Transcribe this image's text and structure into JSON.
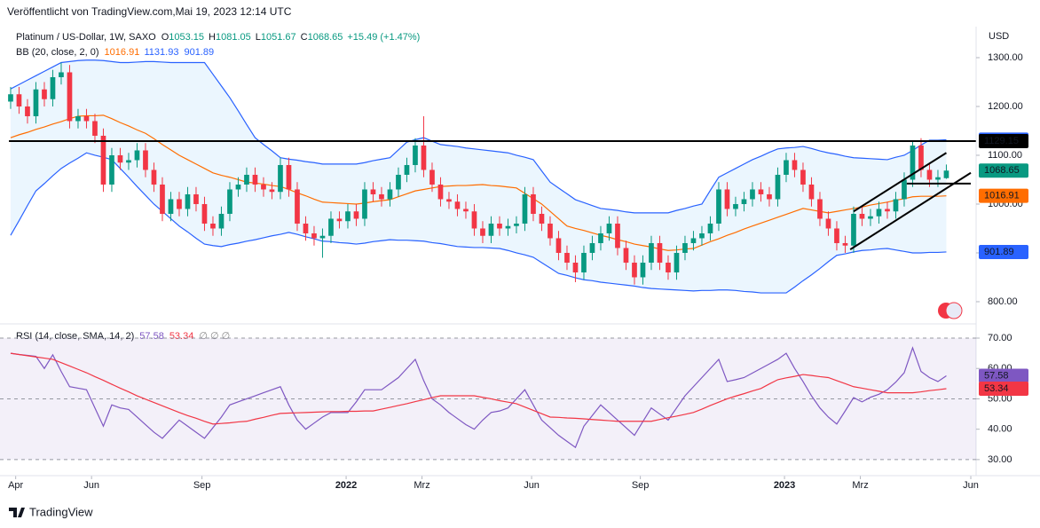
{
  "header": {
    "published": "Veröffentlicht von TradingView.com,Mai 19, 2023 12:14 UTC"
  },
  "chart_data": {
    "type": "candlestick",
    "title": "Platinum / US-Dollar, 1W, SAXO",
    "currency": "USD",
    "ohlc_labels": [
      "O",
      "H",
      "L",
      "C"
    ],
    "change": "+15.49 (+1.47%)",
    "up_color": "#089981",
    "down_color": "#f23645",
    "open": [
      1210,
      1225,
      1200,
      1180,
      1235,
      1215,
      1260,
      1270,
      1170,
      1180,
      1170,
      1140,
      1040,
      1100,
      1085,
      1090,
      1110,
      1070,
      1040,
      980,
      1010,
      990,
      1020,
      1000,
      960,
      950,
      980,
      1030,
      1040,
      1060,
      1040,
      1030,
      1025,
      1080,
      1030,
      960,
      940,
      930,
      935,
      970,
      965,
      985,
      970,
      1030,
      1020,
      1010,
      1030,
      1060,
      1080,
      1120,
      1070,
      1040,
      1010,
      1005,
      990,
      985,
      950,
      935,
      960,
      950,
      955,
      960,
      1020,
      980,
      960,
      930,
      900,
      880,
      860,
      900,
      920,
      940,
      960,
      910,
      880,
      850,
      880,
      920,
      880,
      860,
      900,
      920,
      930,
      940,
      960,
      1030,
      990,
      1000,
      1010,
      1030,
      1020,
      1010,
      1060,
      1090,
      1070,
      1040,
      1010,
      970,
      950,
      920,
      915,
      980,
      970,
      975,
      990,
      985,
      1010,
      1050,
      1120,
      1070,
      1050,
      1053.15
    ],
    "high": [
      1240,
      1240,
      1215,
      1250,
      1250,
      1275,
      1290,
      1285,
      1195,
      1195,
      1185,
      1155,
      1115,
      1115,
      1105,
      1125,
      1125,
      1085,
      1055,
      1025,
      1025,
      1035,
      1035,
      1015,
      975,
      995,
      1045,
      1055,
      1075,
      1075,
      1055,
      1045,
      1095,
      1095,
      1045,
      975,
      955,
      950,
      985,
      985,
      1000,
      1000,
      1045,
      1045,
      1035,
      1045,
      1075,
      1095,
      1135,
      1180,
      1085,
      1055,
      1025,
      1020,
      1005,
      1000,
      965,
      975,
      975,
      970,
      975,
      1035,
      1035,
      995,
      975,
      945,
      915,
      895,
      915,
      935,
      955,
      975,
      975,
      925,
      895,
      895,
      935,
      935,
      895,
      915,
      935,
      945,
      955,
      975,
      1045,
      1045,
      1015,
      1025,
      1045,
      1045,
      1035,
      1075,
      1105,
      1105,
      1085,
      1055,
      1025,
      985,
      965,
      935,
      995,
      995,
      990,
      1005,
      1005,
      1025,
      1065,
      1130,
      1135,
      1085,
      1070,
      1081.05
    ],
    "low": [
      1195,
      1185,
      1165,
      1165,
      1200,
      1200,
      1245,
      1155,
      1155,
      1155,
      1125,
      1025,
      1025,
      1070,
      1070,
      1075,
      1055,
      1025,
      965,
      965,
      975,
      975,
      985,
      945,
      935,
      935,
      965,
      1015,
      1025,
      1025,
      1015,
      1010,
      1010,
      1015,
      945,
      925,
      915,
      890,
      920,
      950,
      950,
      955,
      955,
      1005,
      995,
      995,
      1015,
      1045,
      1065,
      1055,
      1025,
      995,
      990,
      975,
      970,
      935,
      920,
      920,
      935,
      935,
      940,
      945,
      965,
      945,
      915,
      885,
      865,
      840,
      845,
      885,
      905,
      925,
      895,
      865,
      835,
      835,
      865,
      865,
      845,
      845,
      885,
      905,
      915,
      925,
      945,
      975,
      975,
      985,
      995,
      1005,
      995,
      995,
      1045,
      1055,
      1025,
      995,
      955,
      935,
      905,
      900,
      900,
      955,
      955,
      960,
      970,
      970,
      995,
      1035,
      1055,
      1035,
      1035,
      1051.67
    ],
    "close": [
      1225,
      1200,
      1180,
      1235,
      1215,
      1260,
      1270,
      1170,
      1180,
      1170,
      1140,
      1040,
      1100,
      1085,
      1090,
      1110,
      1070,
      1040,
      980,
      1010,
      990,
      1020,
      1000,
      960,
      950,
      980,
      1030,
      1040,
      1060,
      1040,
      1030,
      1025,
      1080,
      1030,
      960,
      940,
      930,
      935,
      970,
      965,
      985,
      970,
      1030,
      1020,
      1010,
      1030,
      1060,
      1080,
      1120,
      1070,
      1040,
      1010,
      1005,
      990,
      985,
      950,
      935,
      960,
      950,
      955,
      960,
      1020,
      980,
      960,
      930,
      900,
      880,
      860,
      900,
      920,
      940,
      960,
      910,
      880,
      850,
      880,
      920,
      880,
      860,
      900,
      920,
      930,
      940,
      960,
      1030,
      990,
      1000,
      1010,
      1030,
      1020,
      1010,
      1060,
      1090,
      1070,
      1040,
      1010,
      970,
      950,
      920,
      915,
      980,
      970,
      975,
      990,
      985,
      1010,
      1050,
      1120,
      1070,
      1050,
      1055,
      1068.65
    ],
    "xlim": [
      -1.26,
      114.53
    ],
    "ylim": [
      763.6,
      1363.6
    ],
    "yticks": [
      {
        "value": 1300,
        "label": "1300.00"
      },
      {
        "value": 1200,
        "label": "1200.00"
      },
      {
        "value": 1100,
        "label": "1100.00"
      },
      {
        "value": 1000,
        "label": "1000.00"
      },
      {
        "value": 900,
        "label": "900.00"
      },
      {
        "value": 800,
        "label": "800.00"
      }
    ],
    "xticks": [
      {
        "value": 0.6,
        "label": "Apr"
      },
      {
        "value": 9.6,
        "label": "Jun"
      },
      {
        "value": 22.7,
        "label": "Sep"
      },
      {
        "value": 39.8,
        "label": "2022"
      },
      {
        "value": 48.8,
        "label": "Mrz"
      },
      {
        "value": 61.8,
        "label": "Jun"
      },
      {
        "value": 74.7,
        "label": "Sep"
      },
      {
        "value": 91.8,
        "label": "2023"
      },
      {
        "value": 100.8,
        "label": "Mrz"
      },
      {
        "value": 113.9,
        "label": "Jun"
      }
    ],
    "bollinger": {
      "name": "BB (20, close, 2, 0)",
      "fill": "rgba(33,150,243,0.09)",
      "series": [
        {
          "color": "#ff6d00",
          "values": [
            1136,
            1142,
            1147,
            1153,
            1158,
            1164,
            1169,
            1175,
            1180,
            1181,
            1181,
            1182,
            1175,
            1167,
            1160,
            1152,
            1145,
            1134,
            1122,
            1111,
            1100,
            1091,
            1082,
            1073,
            1064,
            1059,
            1055,
            1050,
            1045,
            1043,
            1041,
            1038,
            1036,
            1030,
            1023,
            1017,
            1010,
            1004,
            1003,
            1002,
            1001,
            1000,
            1002,
            1005,
            1007,
            1009,
            1015,
            1021,
            1027,
            1030,
            1033,
            1036,
            1037,
            1038,
            1038,
            1039,
            1040,
            1038,
            1037,
            1035,
            1033,
            1022,
            1011,
            1000,
            985,
            970,
            955,
            950,
            946,
            941,
            936,
            932,
            927,
            923,
            918,
            915,
            912,
            908,
            905,
            906,
            908,
            909,
            916,
            923,
            929,
            936,
            942,
            949,
            955,
            961,
            967,
            973,
            979,
            985,
            991,
            988,
            985,
            982,
            985,
            988,
            991,
            994,
            998,
            1001,
            1004,
            1008,
            1011,
            1015,
            1016,
            1016,
            1016,
            1016.91
          ]
        },
        {
          "color": "#2962ff",
          "values": [
            1236,
            1245,
            1254,
            1263,
            1272,
            1281,
            1290,
            1292,
            1294,
            1295,
            1295,
            1294,
            1292,
            1290,
            1290,
            1291,
            1292,
            1292,
            1291,
            1290,
            1290,
            1290,
            1290,
            1290,
            1266,
            1242,
            1218,
            1191,
            1163,
            1136,
            1122,
            1109,
            1095,
            1092,
            1090,
            1087,
            1085,
            1082,
            1082,
            1082,
            1082,
            1082,
            1085,
            1089,
            1092,
            1095,
            1111,
            1127,
            1132,
            1136,
            1129,
            1122,
            1120,
            1118,
            1115,
            1113,
            1111,
            1109,
            1107,
            1105,
            1100,
            1096,
            1091,
            1068,
            1045,
            1033,
            1021,
            1009,
            1003,
            997,
            991,
            989,
            987,
            984,
            982,
            982,
            982,
            982,
            982,
            987,
            991,
            996,
            1000,
            1028,
            1055,
            1064,
            1073,
            1082,
            1091,
            1098,
            1106,
            1113,
            1115,
            1116,
            1118,
            1114,
            1109,
            1105,
            1102,
            1098,
            1095,
            1094,
            1093,
            1092,
            1091,
            1096,
            1100,
            1110,
            1121,
            1131,
            1131,
            1131.93
          ]
        },
        {
          "color": "#2962ff",
          "values": [
            936,
            966,
            997,
            1027,
            1042,
            1058,
            1073,
            1084,
            1094,
            1105,
            1100,
            1096,
            1091,
            1073,
            1055,
            1036,
            1018,
            1000,
            985,
            970,
            955,
            943,
            930,
            918,
            915,
            913,
            917,
            920,
            924,
            927,
            931,
            935,
            938,
            942,
            938,
            933,
            929,
            924,
            923,
            921,
            920,
            918,
            920,
            923,
            925,
            927,
            926,
            926,
            925,
            924,
            921,
            919,
            916,
            913,
            912,
            911,
            911,
            910,
            909,
            905,
            900,
            896,
            891,
            880,
            869,
            858,
            854,
            849,
            845,
            843,
            840,
            838,
            836,
            834,
            832,
            829,
            827,
            826,
            825,
            824,
            823,
            822,
            823,
            823,
            824,
            824,
            823,
            821,
            820,
            818,
            818,
            818,
            818,
            830,
            843,
            855,
            868,
            882,
            895,
            898,
            902,
            905,
            906,
            908,
            909,
            906,
            903,
            900,
            900,
            901,
            901,
            901.89
          ]
        }
      ]
    },
    "drawings": [
      {
        "color": "#000000",
        "x": [
          -0.2,
          114.5
        ],
        "y": [
          1129.15,
          1129.15
        ]
      },
      {
        "color": "#000000",
        "x": [
          99.6,
          113.9
        ],
        "y": [
          907,
          1064
        ]
      },
      {
        "color": "#000000",
        "x": [
          100,
          111
        ],
        "y": [
          985,
          1105
        ]
      },
      {
        "color": "#000000",
        "x": [
          106.3,
          113.9
        ],
        "y": [
          1042,
          1042
        ]
      }
    ],
    "rsi": {
      "name": "RSI (14, close, SMA, 14, 2)",
      "extra": "∅ ∅ ∅",
      "fill": "rgba(126,87,194,0.09)",
      "ylim": [
        25,
        73.8
      ],
      "yticks": [
        {
          "value": 70,
          "label": "70.00"
        },
        {
          "value": 60,
          "label": "60.00"
        },
        {
          "value": 50,
          "label": "50.00"
        },
        {
          "value": 40,
          "label": "40.00"
        },
        {
          "value": 30,
          "label": "30.00"
        }
      ],
      "series": [
        {
          "color": "#7e57c2",
          "values": [
            65,
            64.6,
            64.3,
            64,
            60,
            64.5,
            59,
            54,
            53.5,
            53,
            47,
            41,
            48,
            47,
            46.5,
            44,
            41.5,
            39,
            37,
            40,
            43,
            41,
            39,
            37,
            40.5,
            44,
            48,
            49,
            50,
            51,
            52,
            53,
            54,
            48,
            43,
            40,
            42,
            44,
            45.5,
            45.5,
            45.5,
            49,
            53,
            53,
            53,
            55,
            57,
            60,
            63,
            56,
            50,
            48,
            45.5,
            43.5,
            41.5,
            40,
            43,
            45.5,
            46,
            47,
            50,
            53,
            48,
            43,
            40.5,
            38,
            36,
            34,
            41,
            44.5,
            48,
            45.5,
            43,
            40.5,
            38,
            42.5,
            47,
            45,
            43,
            47,
            51,
            54,
            57,
            60,
            63,
            55.7,
            56.3,
            57,
            58.5,
            60,
            61.5,
            63,
            65,
            60,
            55.7,
            51,
            47,
            44,
            41.7,
            46,
            50.4,
            49,
            50.5,
            51.5,
            53,
            55.5,
            58.6,
            66.8,
            59,
            57,
            55.7,
            57.58
          ]
        },
        {
          "color": "#f23645",
          "values": [
            65,
            64.6,
            64.2,
            63.8,
            63.4,
            63,
            61.9,
            60.8,
            59.7,
            58.6,
            57.3,
            56.1,
            54.8,
            53.5,
            52.3,
            51,
            49.9,
            48.8,
            47.7,
            46.6,
            45.5,
            44.5,
            43.6,
            42.6,
            41.7,
            41.9,
            42.1,
            42.4,
            42.6,
            43.3,
            43.9,
            44.6,
            45.2,
            45.3,
            45.4,
            45.5,
            45.6,
            45.7,
            45.8,
            45.8,
            45.9,
            45.9,
            46,
            46,
            46.6,
            47.2,
            47.8,
            48.4,
            49.1,
            49.7,
            50.4,
            51,
            51,
            51,
            51,
            51,
            50.5,
            50,
            49.4,
            48.9,
            48.4,
            47.3,
            46.2,
            45.1,
            44,
            43.9,
            43.7,
            43.6,
            43.4,
            43.2,
            43,
            42.8,
            42.6,
            42.6,
            42.6,
            42.6,
            42.6,
            43.2,
            43.8,
            44.3,
            44.9,
            45.5,
            46.6,
            47.8,
            48.9,
            50,
            50.9,
            51.7,
            52.6,
            53.4,
            54.9,
            56.3,
            56.9,
            57.4,
            58,
            57.7,
            57.3,
            57,
            56,
            55,
            54,
            53.5,
            53,
            52.5,
            52,
            52,
            52,
            52,
            52.3,
            52.7,
            53,
            53.34
          ]
        }
      ]
    }
  },
  "footer": {
    "brand": "TradingView"
  }
}
